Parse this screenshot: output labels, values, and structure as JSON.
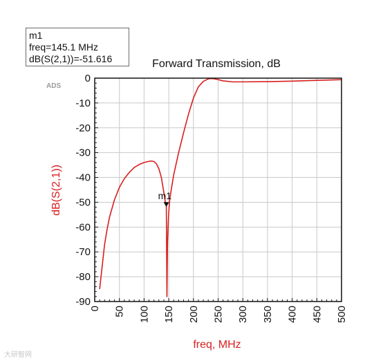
{
  "marker_box": {
    "name": "m1",
    "freq_line": "freq=145.1 MHz",
    "value_line": "dB(S(2,1))=-51.616"
  },
  "watermark": "大研智网",
  "chart_data": {
    "type": "line",
    "title": "Forward Transmission, dB",
    "xlabel": "freq, MHz",
    "ylabel": "dB(S(2,1))",
    "badge": "ADS",
    "xlim": [
      0,
      500
    ],
    "ylim": [
      -90,
      0
    ],
    "xticks": [
      0,
      50,
      100,
      150,
      200,
      250,
      300,
      350,
      400,
      450,
      500
    ],
    "yticks": [
      0,
      -10,
      -20,
      -30,
      -40,
      -50,
      -60,
      -70,
      -80,
      -90
    ],
    "grid": true,
    "series": [
      {
        "color": "#d81e1e",
        "points": [
          [
            10,
            -85
          ],
          [
            15,
            -76
          ],
          [
            20,
            -67
          ],
          [
            25,
            -61
          ],
          [
            30,
            -56
          ],
          [
            40,
            -49
          ],
          [
            50,
            -44
          ],
          [
            60,
            -40.5
          ],
          [
            70,
            -38
          ],
          [
            80,
            -36
          ],
          [
            90,
            -34.8
          ],
          [
            100,
            -34
          ],
          [
            110,
            -33.5
          ],
          [
            115,
            -33.4
          ],
          [
            120,
            -33.6
          ],
          [
            125,
            -34.5
          ],
          [
            130,
            -36.5
          ],
          [
            135,
            -40
          ],
          [
            140,
            -46
          ],
          [
            143,
            -50
          ],
          [
            145.1,
            -51.6
          ],
          [
            146.3,
            -88
          ],
          [
            147.5,
            -66
          ],
          [
            149,
            -58
          ],
          [
            150,
            -54
          ],
          [
            152,
            -49
          ],
          [
            155,
            -45
          ],
          [
            160,
            -39
          ],
          [
            170,
            -30
          ],
          [
            180,
            -22
          ],
          [
            190,
            -14.5
          ],
          [
            200,
            -8
          ],
          [
            210,
            -3.5
          ],
          [
            220,
            -1.3
          ],
          [
            230,
            -0.3
          ],
          [
            235,
            -0.15
          ],
          [
            240,
            -0.2
          ],
          [
            250,
            -0.6
          ],
          [
            260,
            -1.1
          ],
          [
            280,
            -1.5
          ],
          [
            300,
            -1.5
          ],
          [
            350,
            -1.4
          ],
          [
            400,
            -1.2
          ],
          [
            450,
            -0.9
          ],
          [
            500,
            -0.6
          ]
        ]
      }
    ],
    "markers": [
      {
        "label": "m1",
        "x": 145.1,
        "y": -51.616
      }
    ]
  }
}
